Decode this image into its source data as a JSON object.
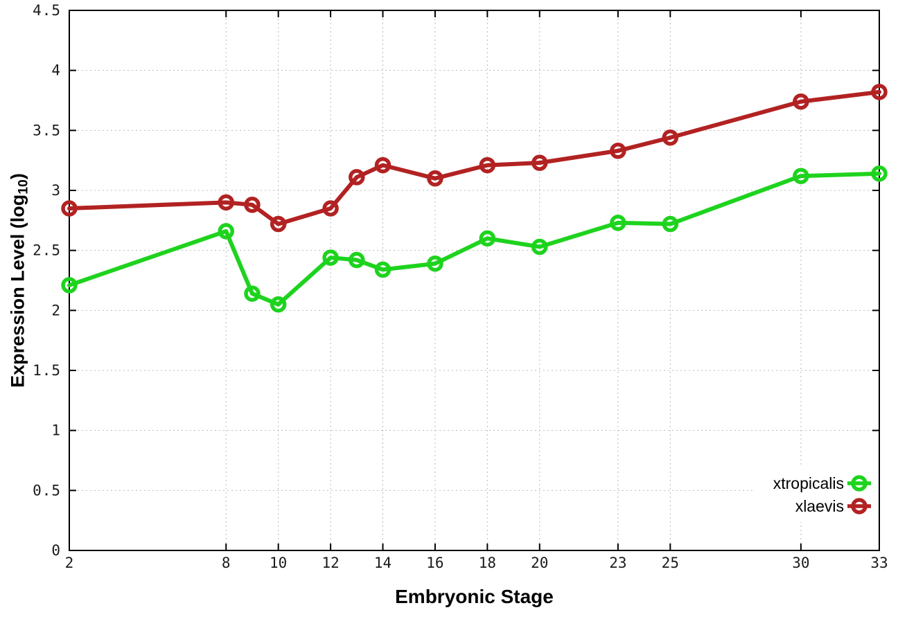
{
  "chart_data": {
    "type": "line",
    "title": "",
    "xlabel": "Embryonic Stage",
    "ylabel": "Expression Level (log10)",
    "ylabel_parts": {
      "pre": "Expression Level (log",
      "sub": "10",
      "post": ")"
    },
    "x": [
      2,
      8,
      9,
      10,
      12,
      13,
      14,
      16,
      18,
      20,
      23,
      25,
      30,
      33
    ],
    "x_ticks": [
      2,
      8,
      10,
      12,
      14,
      16,
      18,
      20,
      23,
      25,
      30,
      33
    ],
    "y_ticks": [
      0,
      0.5,
      1,
      1.5,
      2,
      2.5,
      3,
      3.5,
      4,
      4.5
    ],
    "xlim": [
      2,
      33
    ],
    "ylim": [
      0,
      4.5
    ],
    "grid": true,
    "legend_position": "bottom-right",
    "series": [
      {
        "name": "xtropicalis",
        "color": "#1ed31e",
        "values": [
          2.21,
          2.66,
          2.14,
          2.05,
          2.44,
          2.42,
          2.34,
          2.39,
          2.6,
          2.53,
          2.73,
          2.72,
          3.12,
          3.14
        ]
      },
      {
        "name": "xlaevis",
        "color": "#b22222",
        "values": [
          2.85,
          2.9,
          2.88,
          2.72,
          2.85,
          3.11,
          3.21,
          3.1,
          3.21,
          3.23,
          3.33,
          3.44,
          3.74,
          3.82
        ]
      }
    ],
    "style": {
      "border_color": "#000000",
      "grid_color": "#b8b8b8",
      "tick_label_color": "#1a1a1a",
      "background": "#ffffff"
    }
  }
}
